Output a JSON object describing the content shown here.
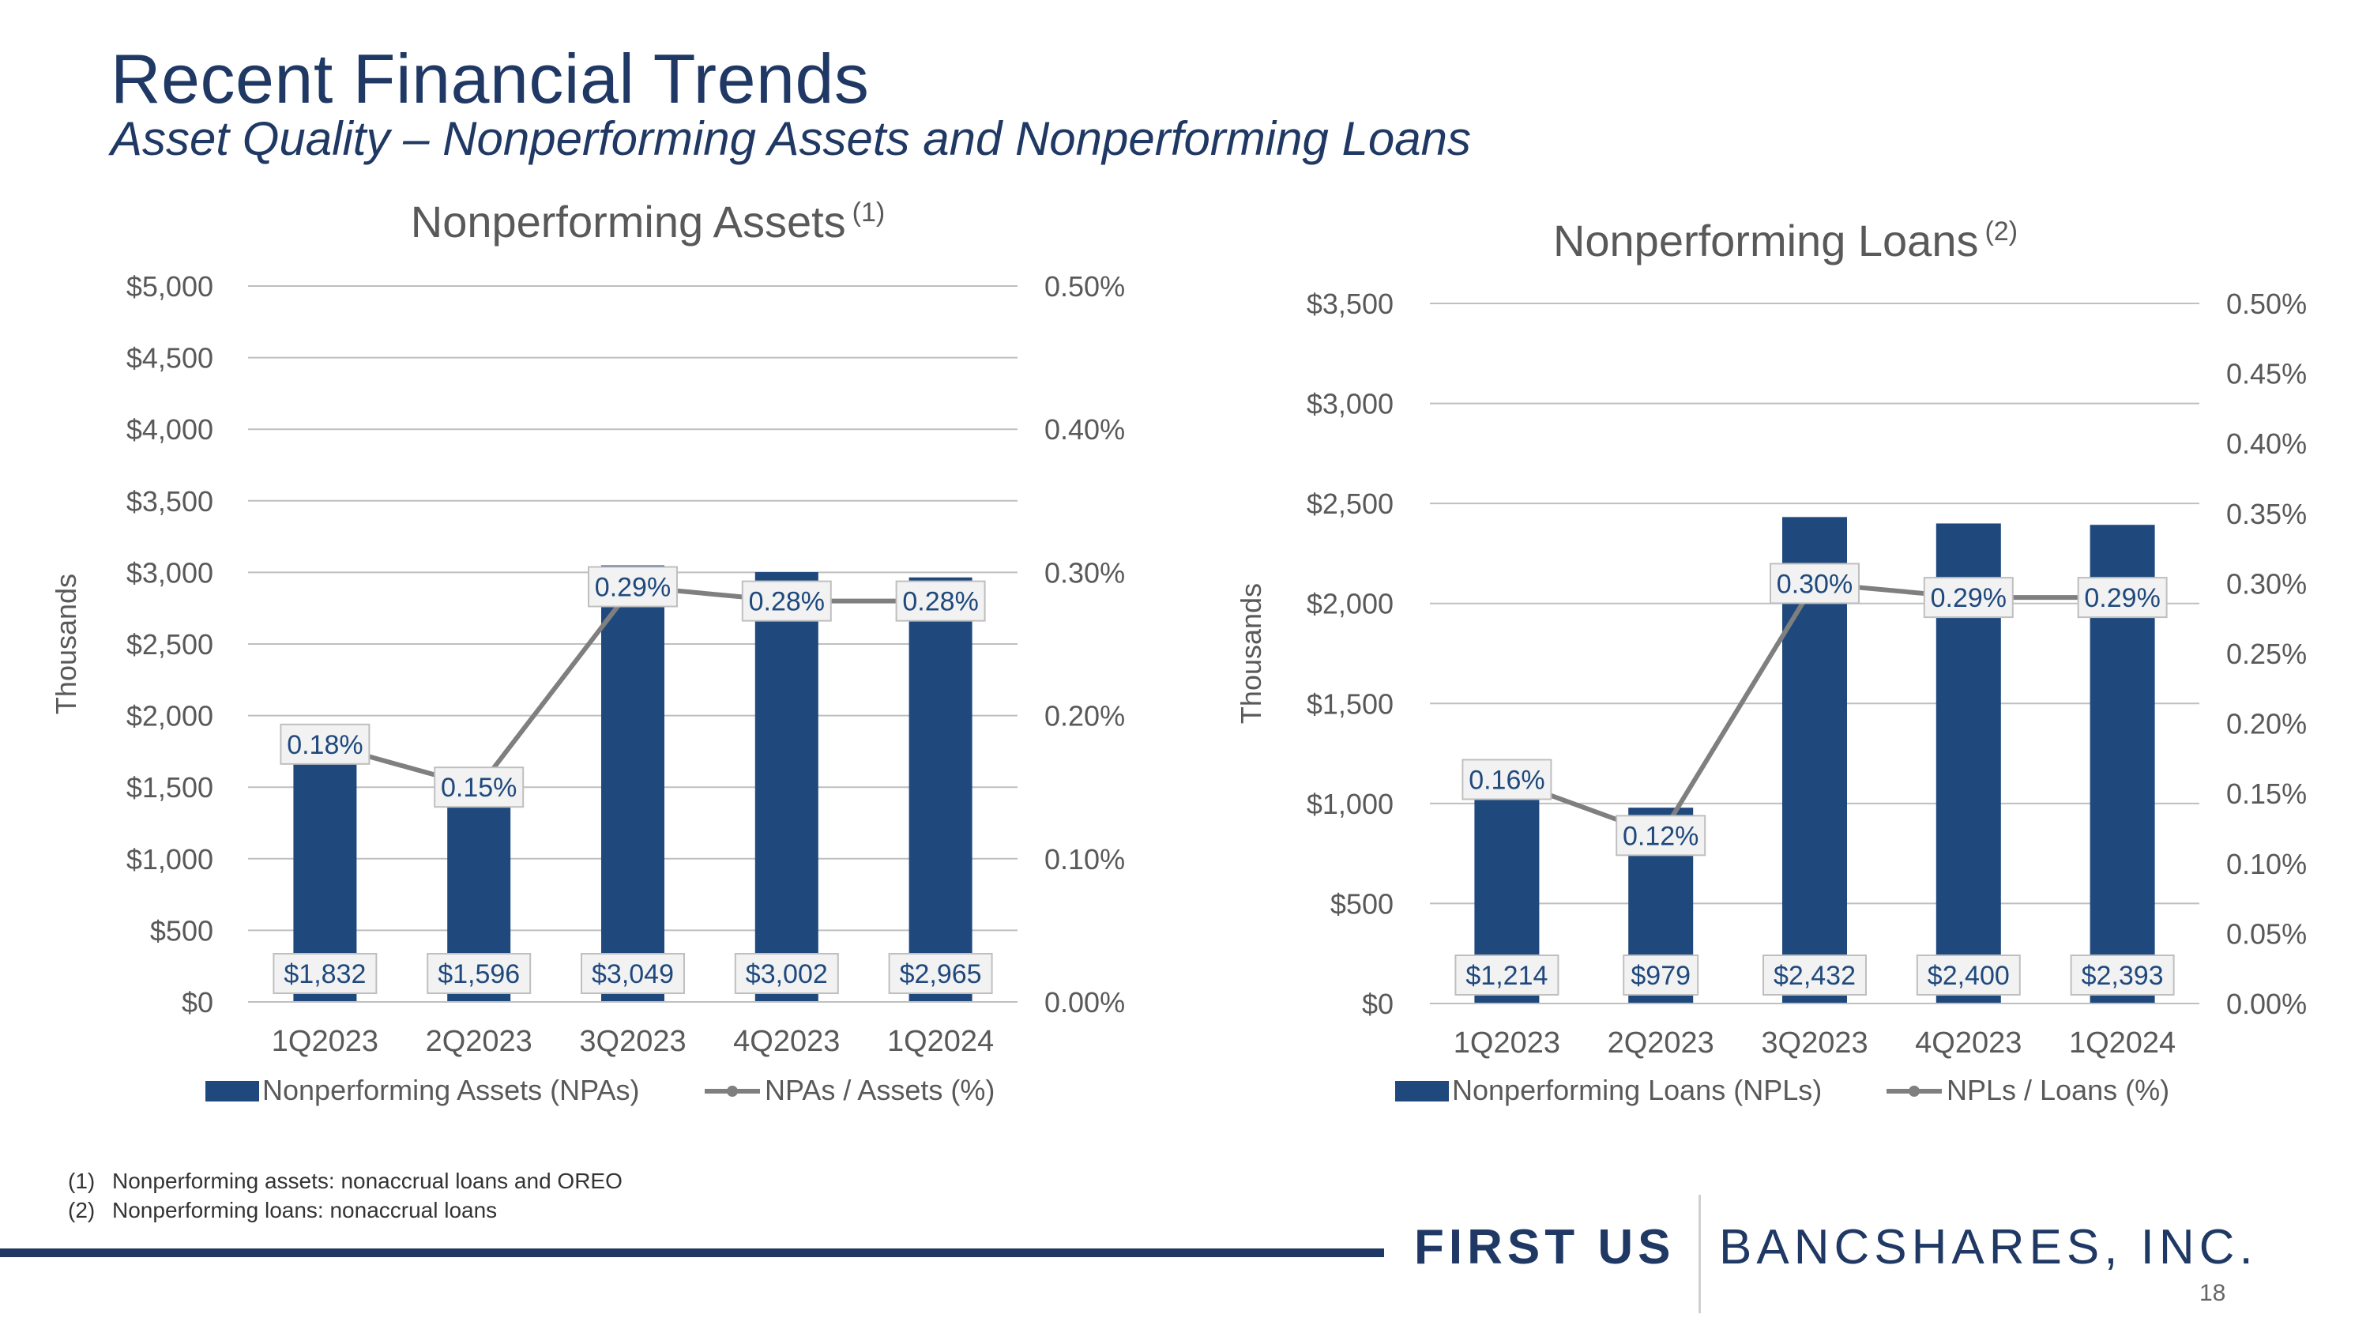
{
  "title": "Recent Financial Trends",
  "subtitle": "Asset Quality – Nonperforming Assets and Nonperforming Loans",
  "colors": {
    "bar": "#1F497D",
    "line": "#7F7F7F",
    "text": "#595959",
    "title": "#1F3864",
    "grid": "#BFBFBF"
  },
  "chart_data": [
    {
      "type": "bar",
      "title": "Nonperforming Assets",
      "title_note": "(1)",
      "categories": [
        "1Q2023",
        "2Q2023",
        "3Q2023",
        "4Q2023",
        "1Q2024"
      ],
      "series": [
        {
          "name": "Nonperforming Assets (NPAs)",
          "type": "bar",
          "axis": "left",
          "values": [
            1832,
            1596,
            3049,
            3002,
            2965
          ],
          "labels": [
            "$1,832",
            "$1,596",
            "$3,049",
            "$3,002",
            "$2,965"
          ]
        },
        {
          "name": "NPAs / Assets (%)",
          "type": "line",
          "axis": "right",
          "values": [
            0.18,
            0.15,
            0.29,
            0.28,
            0.28
          ],
          "labels": [
            "0.18%",
            "0.15%",
            "0.29%",
            "0.28%",
            "0.28%"
          ]
        }
      ],
      "ylabel": "Thousands",
      "ylim": [
        0,
        5000
      ],
      "yticks": [
        0,
        500,
        1000,
        1500,
        2000,
        2500,
        3000,
        3500,
        4000,
        4500,
        5000
      ],
      "ytick_labels": [
        "$0",
        "$500",
        "$1,000",
        "$1,500",
        "$2,000",
        "$2,500",
        "$3,000",
        "$3,500",
        "$4,000",
        "$4,500",
        "$5,000"
      ],
      "y2lim": [
        0,
        0.5
      ],
      "y2ticks": [
        0,
        0.1,
        0.2,
        0.3,
        0.4,
        0.5
      ],
      "y2tick_labels": [
        "0.00%",
        "0.10%",
        "0.20%",
        "0.30%",
        "0.40%",
        "0.50%"
      ],
      "legend": "bottom",
      "grid": true
    },
    {
      "type": "bar",
      "title": "Nonperforming Loans",
      "title_note": "(2)",
      "categories": [
        "1Q2023",
        "2Q2023",
        "3Q2023",
        "4Q2023",
        "1Q2024"
      ],
      "series": [
        {
          "name": "Nonperforming Loans (NPLs)",
          "type": "bar",
          "axis": "left",
          "values": [
            1214,
            979,
            2432,
            2400,
            2393
          ],
          "labels": [
            "$1,214",
            "$979",
            "$2,432",
            "$2,400",
            "$2,393"
          ]
        },
        {
          "name": "NPLs / Loans (%)",
          "type": "line",
          "axis": "right",
          "values": [
            0.16,
            0.12,
            0.3,
            0.29,
            0.29
          ],
          "labels": [
            "0.16%",
            "0.12%",
            "0.30%",
            "0.29%",
            "0.29%"
          ]
        }
      ],
      "ylabel": "Thousands",
      "ylim": [
        0,
        3500
      ],
      "yticks": [
        0,
        500,
        1000,
        1500,
        2000,
        2500,
        3000,
        3500
      ],
      "ytick_labels": [
        "$0",
        "$500",
        "$1,000",
        "$1,500",
        "$2,000",
        "$2,500",
        "$3,000",
        "$3,500"
      ],
      "y2lim": [
        0,
        0.5
      ],
      "y2ticks": [
        0,
        0.05,
        0.1,
        0.15,
        0.2,
        0.25,
        0.3,
        0.35,
        0.4,
        0.45,
        0.5
      ],
      "y2tick_labels": [
        "0.00%",
        "0.05%",
        "0.10%",
        "0.15%",
        "0.20%",
        "0.25%",
        "0.30%",
        "0.35%",
        "0.40%",
        "0.45%",
        "0.50%"
      ],
      "legend": "bottom",
      "grid": true
    }
  ],
  "footnotes": [
    {
      "num": "(1)",
      "text": "Nonperforming assets: nonaccrual loans and OREO"
    },
    {
      "num": "(2)",
      "text": "Nonperforming loans: nonaccrual loans"
    }
  ],
  "logo": {
    "first": "FIRST US",
    "rest": "BANCSHARES, INC."
  },
  "page_number": "18"
}
